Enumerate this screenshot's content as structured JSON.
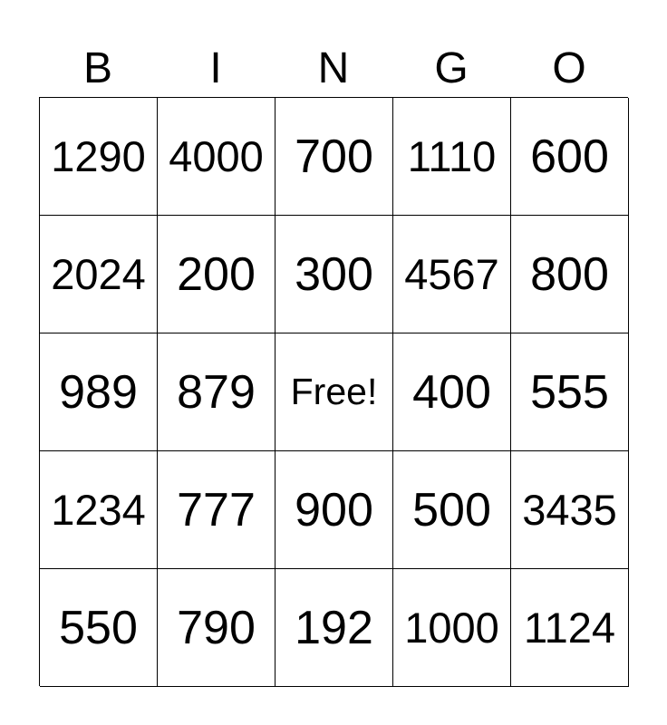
{
  "header": [
    "B",
    "I",
    "N",
    "G",
    "O"
  ],
  "cells": [
    [
      "1290",
      "4000",
      "700",
      "1110",
      "600"
    ],
    [
      "2024",
      "200",
      "300",
      "4567",
      "800"
    ],
    [
      "989",
      "879",
      "Free!",
      "400",
      "555"
    ],
    [
      "1234",
      "777",
      "900",
      "500",
      "3435"
    ],
    [
      "550",
      "790",
      "192",
      "1000",
      "1124"
    ]
  ]
}
